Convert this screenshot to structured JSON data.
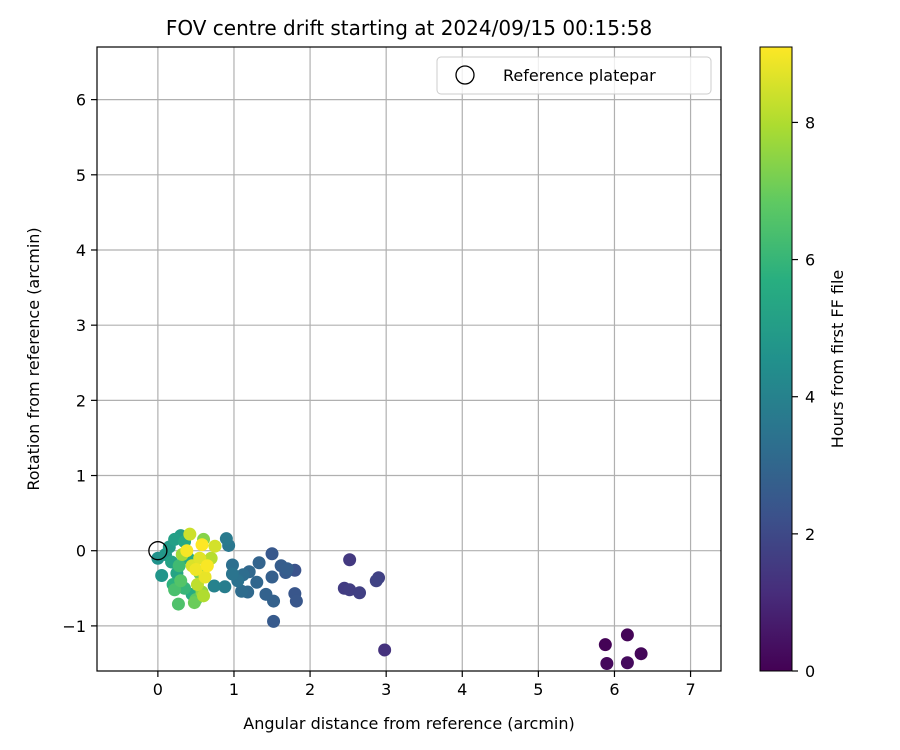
{
  "chart_data": {
    "type": "scatter",
    "title": "FOV centre drift starting at 2024/09/15 00:15:58",
    "xlabel": "Angular distance from reference (arcmin)",
    "ylabel": "Rotation from reference (arcmin)",
    "xlim": [
      -0.8,
      7.4
    ],
    "ylim": [
      -1.6,
      6.7
    ],
    "xticks": [
      0,
      1,
      2,
      3,
      4,
      5,
      6,
      7
    ],
    "yticks": [
      -1,
      0,
      1,
      2,
      3,
      4,
      5,
      6
    ],
    "grid": true,
    "legend": {
      "placement": "top-right",
      "entries": [
        {
          "label": "Reference platepar",
          "marker": "open-circle",
          "x": 0,
          "y": 0
        }
      ]
    },
    "colorbar": {
      "label": "Hours from first FF file",
      "colormap": "viridis",
      "range": [
        0,
        9.1
      ],
      "ticks": [
        0,
        2,
        4,
        6,
        8
      ]
    },
    "series": [
      {
        "points": [
          {
            "x": 5.88,
            "y": -1.25,
            "hours": 0.05
          },
          {
            "x": 6.17,
            "y": -1.12,
            "hours": 0.1
          },
          {
            "x": 6.35,
            "y": -1.37,
            "hours": 0.15
          },
          {
            "x": 5.9,
            "y": -1.5,
            "hours": 0.2
          },
          {
            "x": 6.17,
            "y": -1.49,
            "hours": 0.25
          },
          {
            "x": 2.98,
            "y": -1.32,
            "hours": 1.3
          },
          {
            "x": 2.52,
            "y": -0.12,
            "hours": 1.5
          },
          {
            "x": 2.45,
            "y": -0.5,
            "hours": 1.6
          },
          {
            "x": 2.52,
            "y": -0.52,
            "hours": 1.65
          },
          {
            "x": 2.65,
            "y": -0.56,
            "hours": 1.7
          },
          {
            "x": 2.9,
            "y": -0.36,
            "hours": 1.75
          },
          {
            "x": 2.87,
            "y": -0.4,
            "hours": 1.8
          },
          {
            "x": 1.8,
            "y": -0.26,
            "hours": 2.3
          },
          {
            "x": 1.8,
            "y": -0.57,
            "hours": 2.4
          },
          {
            "x": 1.82,
            "y": -0.67,
            "hours": 2.45
          },
          {
            "x": 1.5,
            "y": -0.04,
            "hours": 2.5
          },
          {
            "x": 1.52,
            "y": -0.94,
            "hours": 2.55
          },
          {
            "x": 1.68,
            "y": -0.29,
            "hours": 2.6
          },
          {
            "x": 1.62,
            "y": -0.2,
            "hours": 2.65
          },
          {
            "x": 1.7,
            "y": -0.24,
            "hours": 2.7
          },
          {
            "x": 1.5,
            "y": -0.35,
            "hours": 2.75
          },
          {
            "x": 1.52,
            "y": -0.67,
            "hours": 2.8
          },
          {
            "x": 1.42,
            "y": -0.58,
            "hours": 2.85
          },
          {
            "x": 1.33,
            "y": -0.16,
            "hours": 2.9
          },
          {
            "x": 1.3,
            "y": -0.42,
            "hours": 3.0
          },
          {
            "x": 1.2,
            "y": -0.28,
            "hours": 3.05
          },
          {
            "x": 1.18,
            "y": -0.55,
            "hours": 3.1
          },
          {
            "x": 1.1,
            "y": -0.54,
            "hours": 3.2
          },
          {
            "x": 1.12,
            "y": -0.32,
            "hours": 3.25
          },
          {
            "x": 0.98,
            "y": -0.19,
            "hours": 3.3
          },
          {
            "x": 1.05,
            "y": -0.4,
            "hours": 3.4
          },
          {
            "x": 0.98,
            "y": -0.31,
            "hours": 3.5
          },
          {
            "x": 0.93,
            "y": 0.07,
            "hours": 3.6
          },
          {
            "x": 0.9,
            "y": 0.16,
            "hours": 3.7
          },
          {
            "x": 0.88,
            "y": -0.48,
            "hours": 3.8
          },
          {
            "x": 0.74,
            "y": -0.47,
            "hours": 4.0
          },
          {
            "x": 0.0,
            "y": -0.1,
            "hours": 4.6
          },
          {
            "x": 0.05,
            "y": -0.33,
            "hours": 4.7
          },
          {
            "x": 0.1,
            "y": -0.05,
            "hours": 4.8
          },
          {
            "x": 0.15,
            "y": 0.05,
            "hours": 4.9
          },
          {
            "x": 0.3,
            "y": 0.2,
            "hours": 5.0
          },
          {
            "x": 0.22,
            "y": 0.15,
            "hours": 5.1
          },
          {
            "x": 0.18,
            "y": -0.15,
            "hours": 5.2
          },
          {
            "x": 0.25,
            "y": -0.3,
            "hours": 5.3
          },
          {
            "x": 0.35,
            "y": 0.12,
            "hours": 5.4
          },
          {
            "x": 0.4,
            "y": -0.1,
            "hours": 5.5
          },
          {
            "x": 0.45,
            "y": -0.58,
            "hours": 5.6
          },
          {
            "x": 0.2,
            "y": -0.45,
            "hours": 5.8
          },
          {
            "x": 0.35,
            "y": -0.5,
            "hours": 6.0
          },
          {
            "x": 0.28,
            "y": -0.2,
            "hours": 6.2
          },
          {
            "x": 0.22,
            "y": -0.52,
            "hours": 6.4
          },
          {
            "x": 0.27,
            "y": -0.71,
            "hours": 6.5
          },
          {
            "x": 0.3,
            "y": -0.4,
            "hours": 6.6
          },
          {
            "x": 0.5,
            "y": -0.65,
            "hours": 6.8
          },
          {
            "x": 0.48,
            "y": -0.69,
            "hours": 7.0
          },
          {
            "x": 0.55,
            "y": -0.3,
            "hours": 7.2
          },
          {
            "x": 0.6,
            "y": 0.15,
            "hours": 7.4
          },
          {
            "x": 0.58,
            "y": -0.55,
            "hours": 7.6
          },
          {
            "x": 0.32,
            "y": -0.05,
            "hours": 7.8
          },
          {
            "x": 0.6,
            "y": -0.6,
            "hours": 8.0
          },
          {
            "x": 0.7,
            "y": -0.1,
            "hours": 8.1
          },
          {
            "x": 0.52,
            "y": -0.45,
            "hours": 8.2
          },
          {
            "x": 0.42,
            "y": 0.22,
            "hours": 8.4
          },
          {
            "x": 0.75,
            "y": 0.06,
            "hours": 8.5
          },
          {
            "x": 0.45,
            "y": -0.2,
            "hours": 8.6
          },
          {
            "x": 0.55,
            "y": -0.1,
            "hours": 8.7
          },
          {
            "x": 0.62,
            "y": -0.35,
            "hours": 8.8
          },
          {
            "x": 0.5,
            "y": -0.25,
            "hours": 8.9
          },
          {
            "x": 0.38,
            "y": 0.0,
            "hours": 9.0
          },
          {
            "x": 0.65,
            "y": -0.2,
            "hours": 9.05
          },
          {
            "x": 0.58,
            "y": 0.08,
            "hours": 9.1
          }
        ]
      }
    ]
  }
}
